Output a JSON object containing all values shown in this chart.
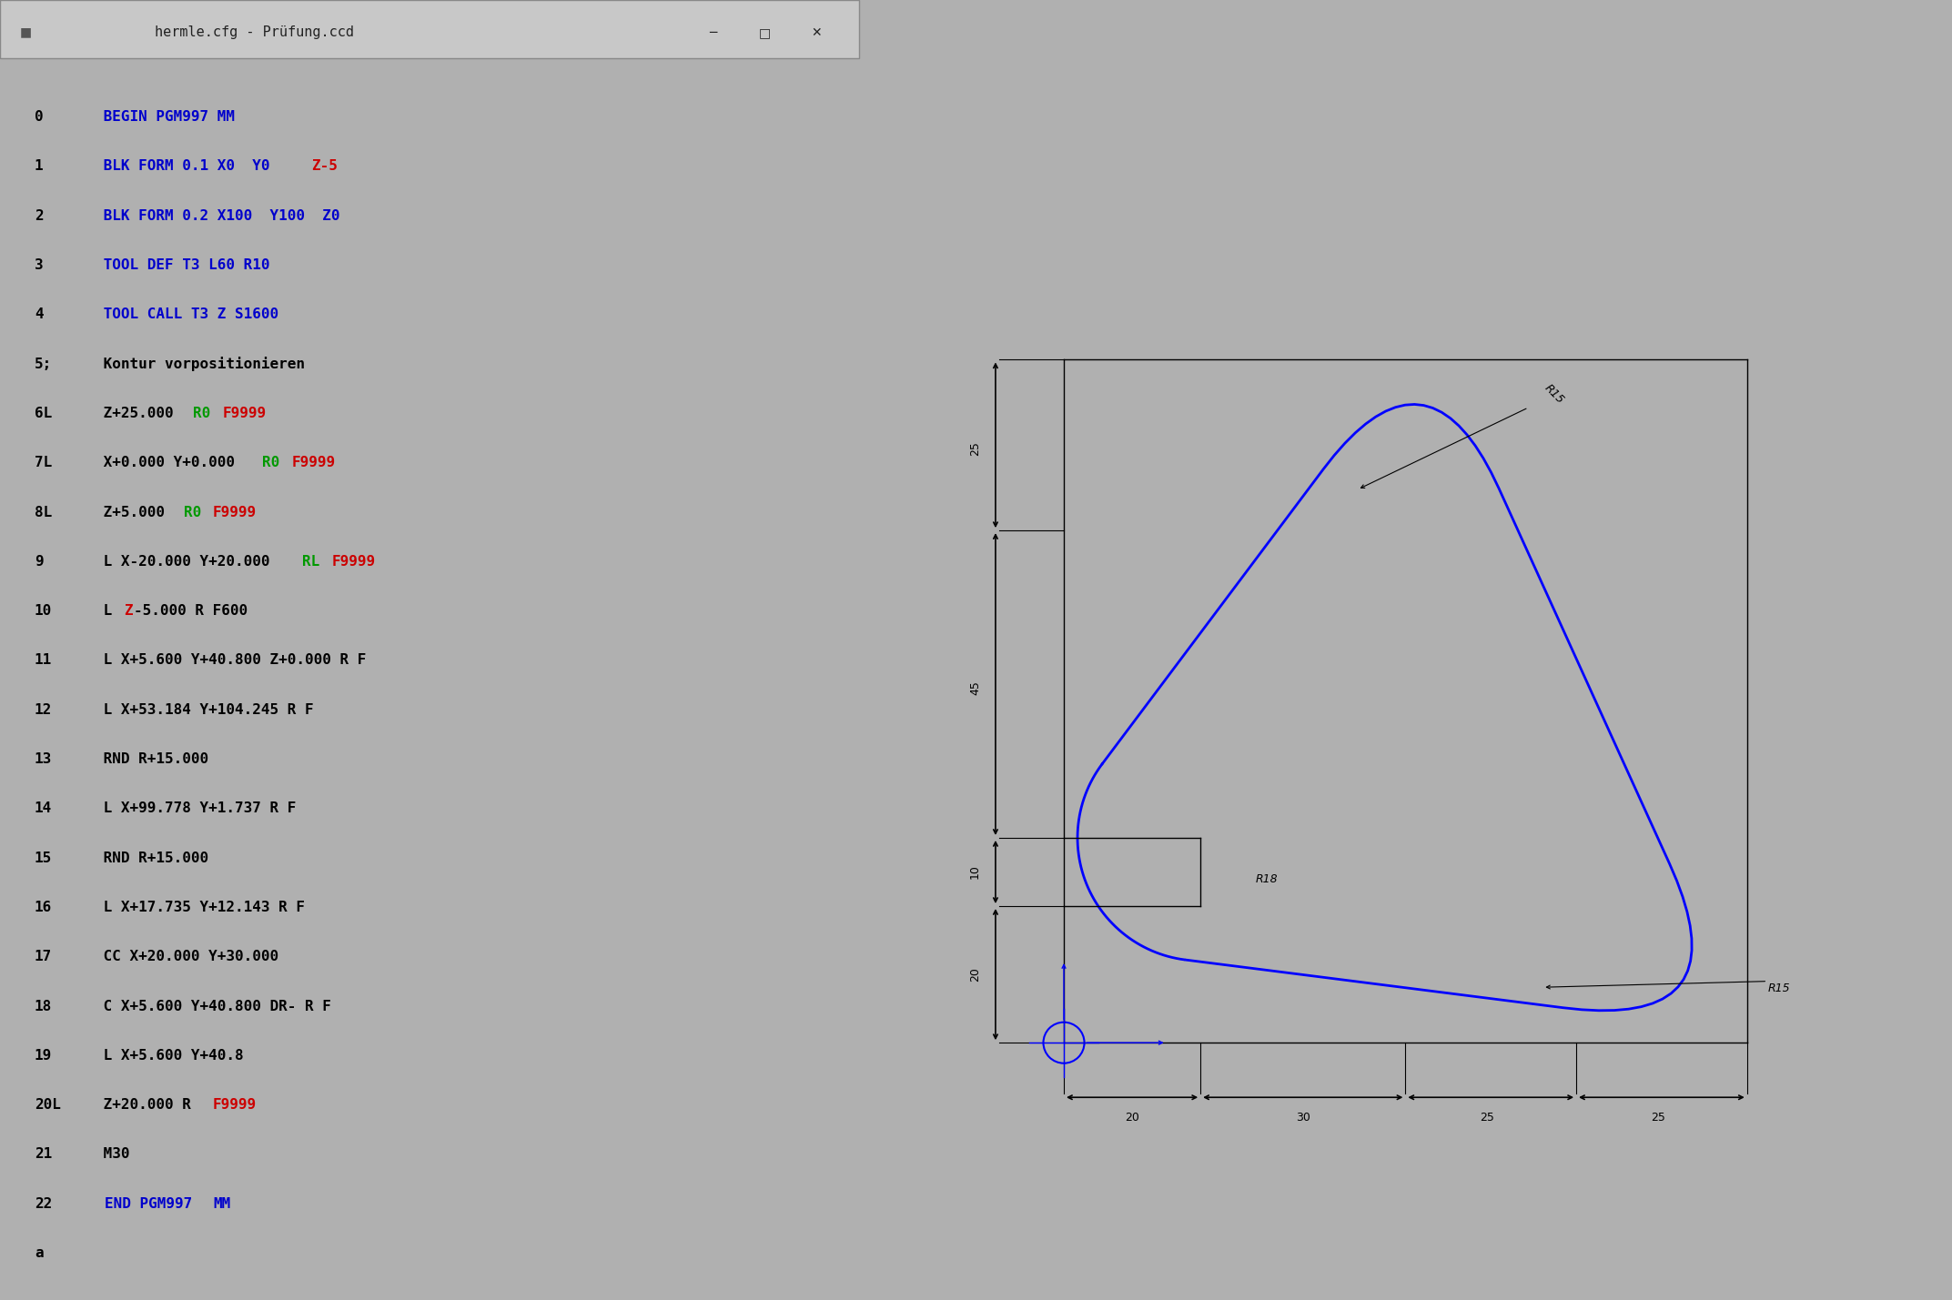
{
  "bg_left": "#f0f0f0",
  "bg_right": "#c8c8c8",
  "title_bar_bg": "#d0d0d0",
  "title_text": "hermle.cfg - Prüfung.ccd",
  "code_lines": [
    {
      "num": "0",
      "parts": [
        {
          "text": " BEGIN PGM997 MM",
          "color": "#0000cc"
        }
      ]
    },
    {
      "num": "1",
      "parts": [
        {
          "text": " BLK FORM 0.1 X0  Y0  ",
          "color": "#0000cc"
        },
        {
          "text": "Z-5",
          "color": "#cc0000"
        }
      ]
    },
    {
      "num": "2",
      "parts": [
        {
          "text": " BLK FORM 0.2 X100  Y100  Z0",
          "color": "#0000cc"
        }
      ]
    },
    {
      "num": "3",
      "parts": [
        {
          "text": " TOOL DEF T3 L60 R10",
          "color": "#0000cc"
        }
      ]
    },
    {
      "num": "4",
      "parts": [
        {
          "text": " TOOL CALL T3 Z S1600",
          "color": "#0000cc"
        }
      ]
    },
    {
      "num": "5;",
      "parts": [
        {
          "text": " Kontur vorpositionieren",
          "color": "#000000"
        }
      ]
    },
    {
      "num": "6L",
      "parts": [
        {
          "text": " Z+25.000 ",
          "color": "#000000"
        },
        {
          "text": "R0",
          "color": "#009900"
        },
        {
          "text": " ",
          "color": "#000000"
        },
        {
          "text": "F9999",
          "color": "#cc0000"
        }
      ]
    },
    {
      "num": "7L",
      "parts": [
        {
          "text": " X+0.000 Y+0.000 ",
          "color": "#000000"
        },
        {
          "text": "R0",
          "color": "#009900"
        },
        {
          "text": " ",
          "color": "#000000"
        },
        {
          "text": "F9999",
          "color": "#cc0000"
        }
      ]
    },
    {
      "num": "8L",
      "parts": [
        {
          "text": " Z+5.000 ",
          "color": "#000000"
        },
        {
          "text": "R0",
          "color": "#009900"
        },
        {
          "text": " ",
          "color": "#000000"
        },
        {
          "text": "F9999",
          "color": "#cc0000"
        }
      ]
    },
    {
      "num": "9",
      "parts": [
        {
          "text": " L X-20.000 Y+20.000 ",
          "color": "#000000"
        },
        {
          "text": "RL",
          "color": "#009900"
        },
        {
          "text": " ",
          "color": "#000000"
        },
        {
          "text": "F9999",
          "color": "#cc0000"
        }
      ]
    },
    {
      "num": "10",
      "parts": [
        {
          "text": " L ",
          "color": "#000000"
        },
        {
          "text": "Z",
          "color": "#cc0000"
        },
        {
          "text": "-5.000 R F600",
          "color": "#000000"
        }
      ]
    },
    {
      "num": "11",
      "parts": [
        {
          "text": " L X+5.600 Y+40.800 Z+0.000 R F",
          "color": "#000000"
        }
      ]
    },
    {
      "num": "12",
      "parts": [
        {
          "text": " L X+53.184 Y+104.245 R F",
          "color": "#000000"
        }
      ]
    },
    {
      "num": "13",
      "parts": [
        {
          "text": " RND R+15.000",
          "color": "#000000"
        }
      ]
    },
    {
      "num": "14",
      "parts": [
        {
          "text": " L X+99.778 Y+1.737 R F",
          "color": "#000000"
        }
      ]
    },
    {
      "num": "15",
      "parts": [
        {
          "text": " RND R+15.000",
          "color": "#000000"
        }
      ]
    },
    {
      "num": "16",
      "parts": [
        {
          "text": " L X+17.735 Y+12.143 R F",
          "color": "#000000"
        }
      ]
    },
    {
      "num": "17",
      "parts": [
        {
          "text": " CC X+20.000 Y+30.000",
          "color": "#000000"
        }
      ]
    },
    {
      "num": "18",
      "parts": [
        {
          "text": " C X+5.600 Y+40.800 DR- R F",
          "color": "#000000"
        }
      ]
    },
    {
      "num": "19",
      "parts": [
        {
          "text": " L X+5.600 Y+40.8",
          "color": "#000000"
        }
      ]
    },
    {
      "num": "20L",
      "parts": [
        {
          "text": " Z+20.000 R ",
          "color": "#000000"
        },
        {
          "text": "F9999",
          "color": "#cc0000"
        }
      ]
    },
    {
      "num": "21",
      "parts": [
        {
          "text": " M30",
          "color": "#000000"
        }
      ]
    },
    {
      "num": "22",
      "parts": [
        {
          "text": " ",
          "color": "#000000"
        },
        {
          "text": "END PGM997",
          "color": "#0000cc"
        },
        {
          "text": " ",
          "color": "#000000"
        },
        {
          "text": "MM",
          "color": "#0000cc"
        }
      ]
    },
    {
      "num": "a",
      "parts": [
        {
          "text": "",
          "color": "#000000"
        }
      ]
    }
  ],
  "curve_color": "#0000ff",
  "dim_color": "#000000",
  "grid_color": "#000000"
}
